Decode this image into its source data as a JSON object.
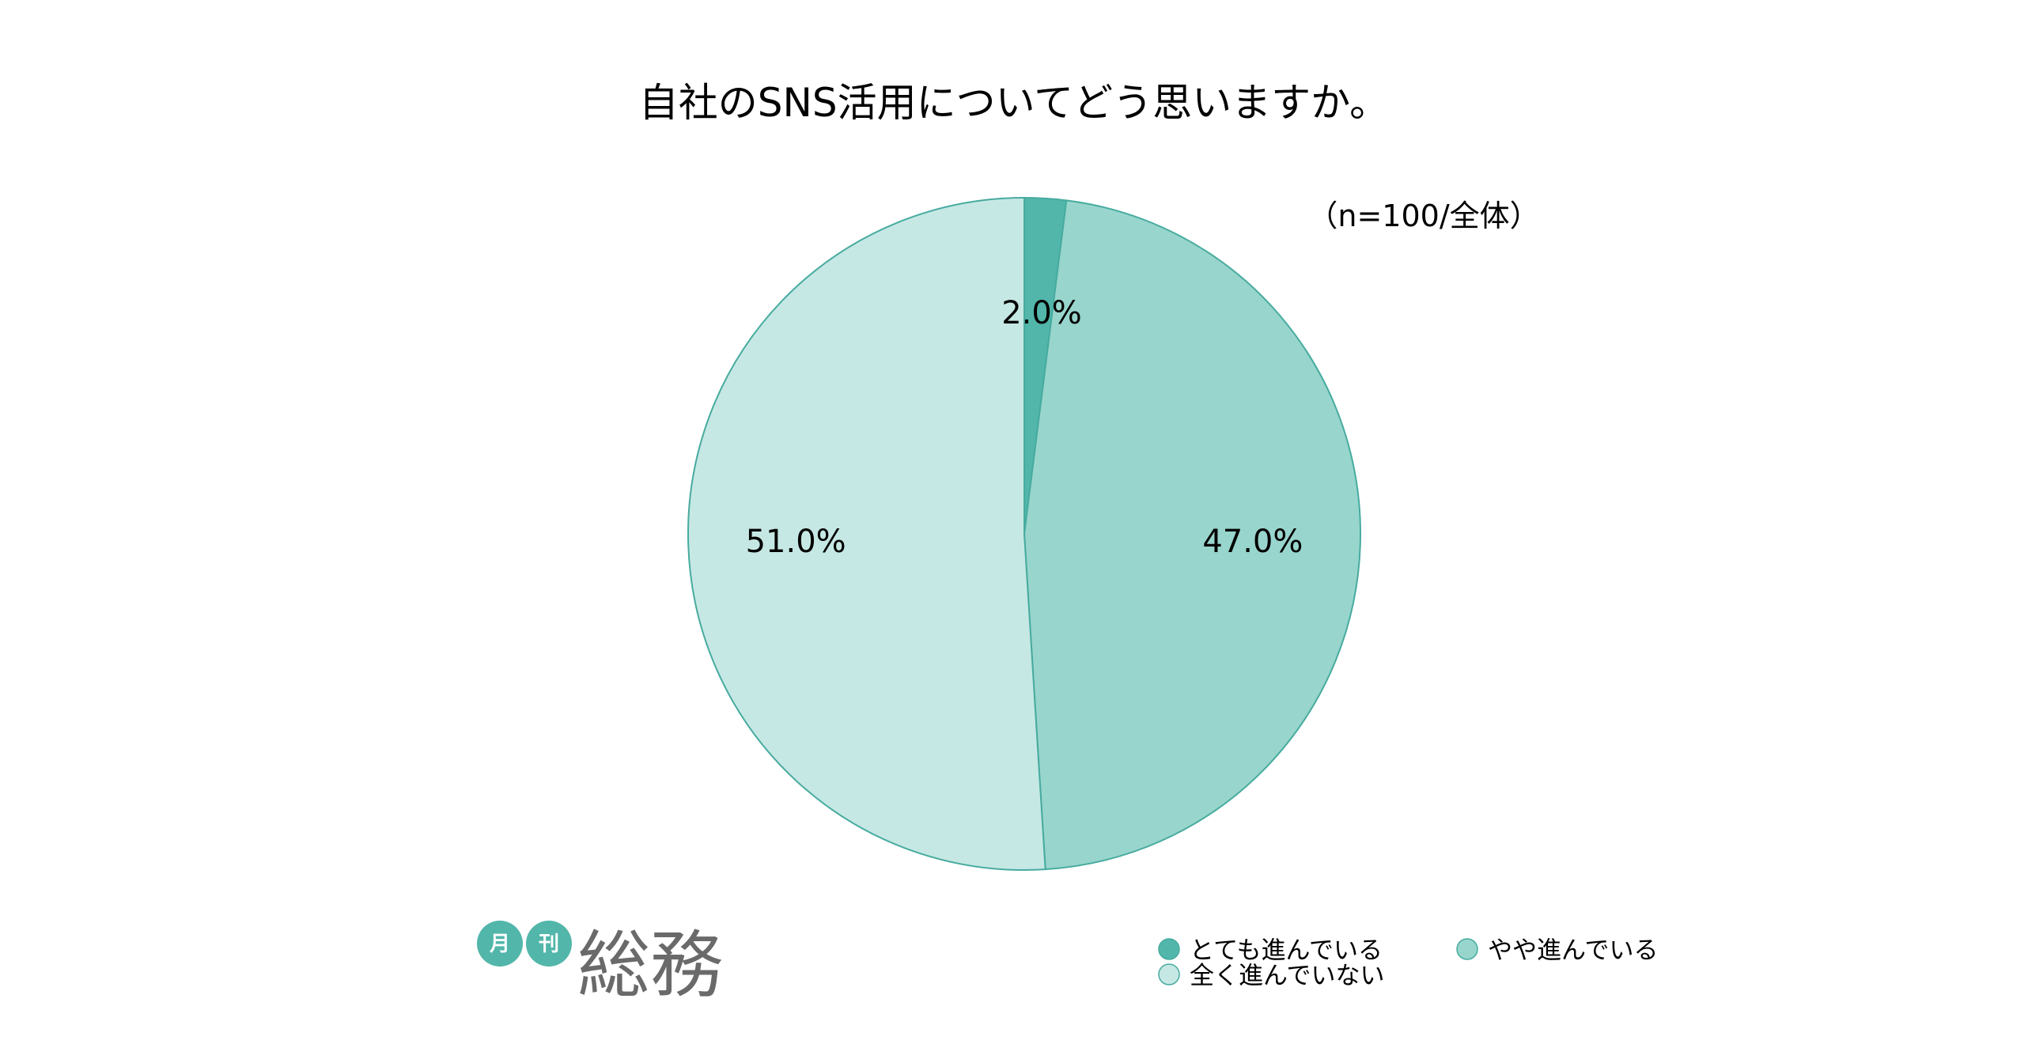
{
  "chart_data": {
    "type": "pie",
    "title": "自社のSNS活用についてどう思いますか。",
    "note": "（n=100/全体）",
    "categories": [
      "とても進んでいる",
      "やや進んでいる",
      "全く進んでいない"
    ],
    "values": [
      2.0,
      47.0,
      51.0
    ],
    "value_labels": [
      "2.0%",
      "47.0%",
      "51.0%"
    ],
    "unit": "%",
    "start_angle_deg": 0,
    "direction": "clockwise",
    "legend_position": "bottom-right",
    "colors": [
      "#52b6aa",
      "#98d5cc",
      "#c6e8e4"
    ],
    "edge_color": "#47ab9f"
  },
  "logo": {
    "small_1": "月",
    "small_2": "刊",
    "main": "総務",
    "badge_color": "#52b6aa",
    "text_color": "#6a6a6a"
  }
}
